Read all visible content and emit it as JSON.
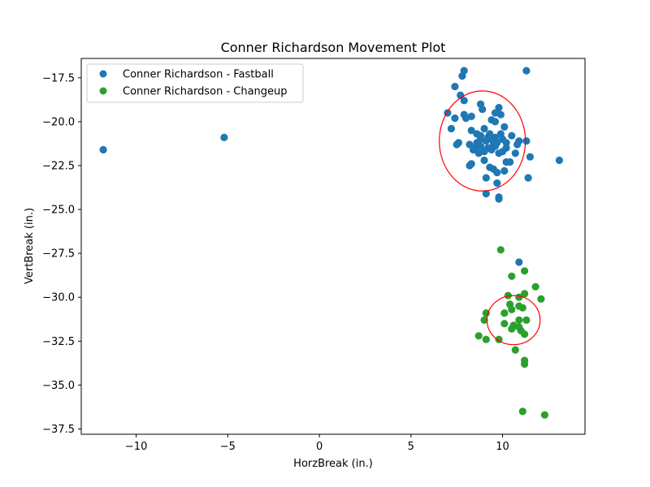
{
  "chart_data": {
    "type": "scatter",
    "title": "Conner Richardson Movement Plot",
    "xlabel": "HorzBreak (in.)",
    "ylabel": "VertBreak (in.)",
    "xlim": [
      -13,
      14.5
    ],
    "ylim": [
      -37.8,
      -16.4
    ],
    "xticks": [
      -10,
      -5,
      0,
      5,
      10
    ],
    "xtick_labels": [
      "−10",
      "−5",
      "0",
      "5",
      "10"
    ],
    "yticks": [
      -17.5,
      -20.0,
      -22.5,
      -25.0,
      -27.5,
      -30.0,
      -32.5,
      -35.0,
      -37.5
    ],
    "ytick_labels": [
      "−17.5",
      "−20.0",
      "−22.5",
      "−25.0",
      "−27.5",
      "−30.0",
      "−32.5",
      "−35.0",
      "−37.5"
    ],
    "grid": false,
    "legend_position": "top-left",
    "series": [
      {
        "name": "Conner Richardson - Fastball",
        "color": "#1f77b4",
        "points": [
          [
            -11.8,
            -21.6
          ],
          [
            -5.2,
            -20.9
          ],
          [
            7.9,
            -17.1
          ],
          [
            11.3,
            -17.1
          ],
          [
            7.8,
            -17.4
          ],
          [
            7.4,
            -18.0
          ],
          [
            7.7,
            -18.5
          ],
          [
            7.9,
            -18.8
          ],
          [
            8.8,
            -19.0
          ],
          [
            9.8,
            -19.2
          ],
          [
            8.9,
            -19.3
          ],
          [
            7.0,
            -19.5
          ],
          [
            7.4,
            -19.8
          ],
          [
            7.9,
            -19.6
          ],
          [
            8.0,
            -19.8
          ],
          [
            8.3,
            -19.7
          ],
          [
            9.6,
            -19.5
          ],
          [
            9.9,
            -19.6
          ],
          [
            9.4,
            -19.9
          ],
          [
            9.6,
            -20.0
          ],
          [
            10.1,
            -20.3
          ],
          [
            7.2,
            -20.4
          ],
          [
            8.3,
            -20.5
          ],
          [
            8.6,
            -20.7
          ],
          [
            9.0,
            -20.4
          ],
          [
            9.3,
            -20.7
          ],
          [
            9.6,
            -20.9
          ],
          [
            9.9,
            -20.7
          ],
          [
            10.5,
            -20.8
          ],
          [
            8.8,
            -21.0
          ],
          [
            9.1,
            -21.1
          ],
          [
            9.4,
            -21.0
          ],
          [
            9.7,
            -21.2
          ],
          [
            10.2,
            -21.2
          ],
          [
            10.9,
            -21.1
          ],
          [
            11.3,
            -21.1
          ],
          [
            7.6,
            -21.2
          ],
          [
            8.2,
            -21.3
          ],
          [
            8.5,
            -21.5
          ],
          [
            8.8,
            -21.4
          ],
          [
            9.2,
            -21.5
          ],
          [
            9.6,
            -21.4
          ],
          [
            10.2,
            -21.5
          ],
          [
            10.8,
            -21.3
          ],
          [
            7.5,
            -21.3
          ],
          [
            8.4,
            -21.6
          ],
          [
            8.7,
            -21.8
          ],
          [
            9.0,
            -21.7
          ],
          [
            9.4,
            -21.6
          ],
          [
            9.8,
            -21.8
          ],
          [
            10.0,
            -21.7
          ],
          [
            10.7,
            -21.8
          ],
          [
            11.5,
            -22.0
          ],
          [
            8.3,
            -22.4
          ],
          [
            8.2,
            -22.5
          ],
          [
            9.0,
            -22.2
          ],
          [
            10.2,
            -22.3
          ],
          [
            10.4,
            -22.3
          ],
          [
            9.3,
            -22.6
          ],
          [
            9.5,
            -22.7
          ],
          [
            10.1,
            -22.8
          ],
          [
            9.7,
            -22.9
          ],
          [
            9.1,
            -23.2
          ],
          [
            9.7,
            -23.5
          ],
          [
            11.4,
            -23.2
          ],
          [
            13.1,
            -22.2
          ],
          [
            9.1,
            -24.1
          ],
          [
            9.8,
            -24.3
          ],
          [
            9.8,
            -24.4
          ],
          [
            10.9,
            -28.0
          ],
          [
            8.8,
            -20.8
          ],
          [
            9.2,
            -20.9
          ],
          [
            10.0,
            -21.0
          ],
          [
            8.6,
            -21.2
          ],
          [
            9.5,
            -21.3
          ]
        ]
      },
      {
        "name": "Conner Richardson - Changeup",
        "color": "#2ca02c",
        "points": [
          [
            9.9,
            -27.3
          ],
          [
            11.2,
            -28.5
          ],
          [
            10.5,
            -28.8
          ],
          [
            11.8,
            -29.4
          ],
          [
            11.2,
            -29.8
          ],
          [
            10.3,
            -29.9
          ],
          [
            10.9,
            -30.0
          ],
          [
            12.1,
            -30.1
          ],
          [
            10.4,
            -30.4
          ],
          [
            10.9,
            -30.5
          ],
          [
            10.5,
            -30.7
          ],
          [
            11.1,
            -30.6
          ],
          [
            10.1,
            -30.9
          ],
          [
            9.1,
            -30.9
          ],
          [
            9.0,
            -31.3
          ],
          [
            10.9,
            -31.3
          ],
          [
            11.3,
            -31.3
          ],
          [
            10.1,
            -31.5
          ],
          [
            10.6,
            -31.6
          ],
          [
            10.9,
            -31.7
          ],
          [
            10.5,
            -31.8
          ],
          [
            11.0,
            -31.9
          ],
          [
            11.2,
            -32.1
          ],
          [
            8.7,
            -32.2
          ],
          [
            9.1,
            -32.4
          ],
          [
            9.8,
            -32.4
          ],
          [
            10.7,
            -33.0
          ],
          [
            11.2,
            -33.6
          ],
          [
            11.2,
            -33.8
          ],
          [
            11.1,
            -36.5
          ],
          [
            12.3,
            -36.7
          ]
        ]
      }
    ],
    "ellipses": [
      {
        "cx": 8.9,
        "cy": -21.1,
        "rx": 2.35,
        "ry": 2.85,
        "color": "#ff0000"
      },
      {
        "cx": 10.6,
        "cy": -31.3,
        "rx": 1.45,
        "ry": 1.4,
        "color": "#ff0000"
      }
    ]
  }
}
